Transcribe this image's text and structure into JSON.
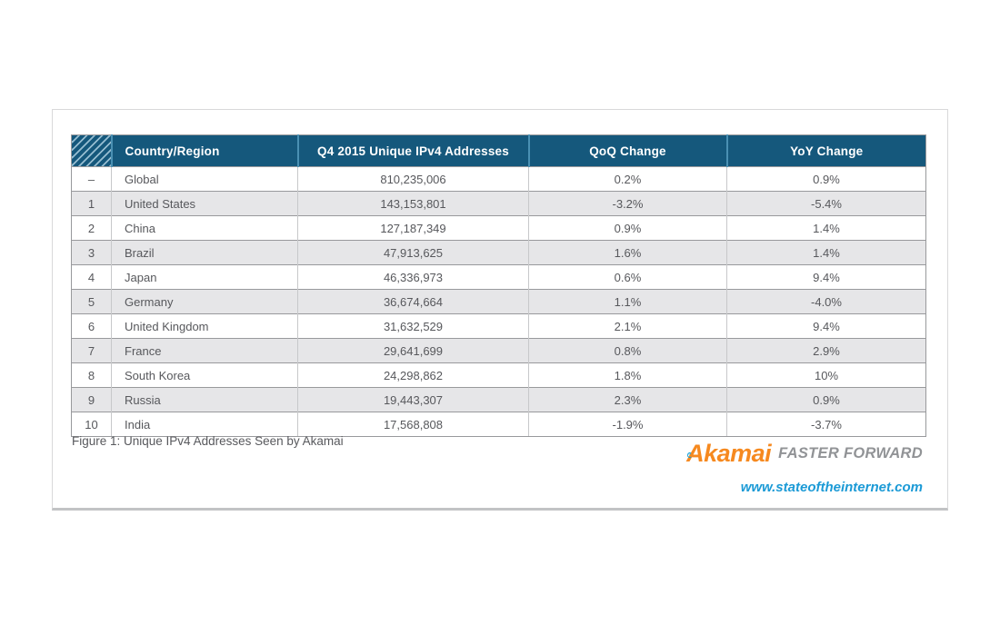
{
  "figure": {
    "caption": "Figure 1: Unique IPv4 Addresses Seen by Akamai"
  },
  "table": {
    "headers": {
      "country": "Country/Region",
      "addresses": "Q4 2015 Unique IPv4 Addresses",
      "qoq": "QoQ Change",
      "yoy": "YoY Change"
    },
    "rows": [
      {
        "rank": "–",
        "country": "Global",
        "addresses": "810,235,006",
        "qoq": "0.2%",
        "yoy": "0.9%"
      },
      {
        "rank": "1",
        "country": "United States",
        "addresses": "143,153,801",
        "qoq": "-3.2%",
        "yoy": "-5.4%"
      },
      {
        "rank": "2",
        "country": "China",
        "addresses": "127,187,349",
        "qoq": "0.9%",
        "yoy": "1.4%"
      },
      {
        "rank": "3",
        "country": "Brazil",
        "addresses": "47,913,625",
        "qoq": "1.6%",
        "yoy": "1.4%"
      },
      {
        "rank": "4",
        "country": "Japan",
        "addresses": "46,336,973",
        "qoq": "0.6%",
        "yoy": "9.4%"
      },
      {
        "rank": "5",
        "country": "Germany",
        "addresses": "36,674,664",
        "qoq": "1.1%",
        "yoy": "-4.0%"
      },
      {
        "rank": "6",
        "country": "United Kingdom",
        "addresses": "31,632,529",
        "qoq": "2.1%",
        "yoy": "9.4%"
      },
      {
        "rank": "7",
        "country": "France",
        "addresses": "29,641,699",
        "qoq": "0.8%",
        "yoy": "2.9%"
      },
      {
        "rank": "8",
        "country": "South Korea",
        "addresses": "24,298,862",
        "qoq": "1.8%",
        "yoy": "10%"
      },
      {
        "rank": "9",
        "country": "Russia",
        "addresses": "19,443,307",
        "qoq": "2.3%",
        "yoy": "0.9%"
      },
      {
        "rank": "10",
        "country": "India",
        "addresses": "17,568,808",
        "qoq": "-1.9%",
        "yoy": "-3.7%"
      }
    ]
  },
  "branding": {
    "logo_text": "Akamai",
    "tagline": "FASTER FORWARD",
    "url": "www.stateoftheinternet.com"
  },
  "colors": {
    "header_bg": "#15587c",
    "header_separator": "#4a90b3",
    "row_alt": "#e6e6e8",
    "body_text": "#57585c",
    "logo_orange": "#f6891f",
    "logo_blue": "#0d9dd9",
    "tagline_gray": "#919396",
    "url_blue": "#1b9ad6"
  }
}
